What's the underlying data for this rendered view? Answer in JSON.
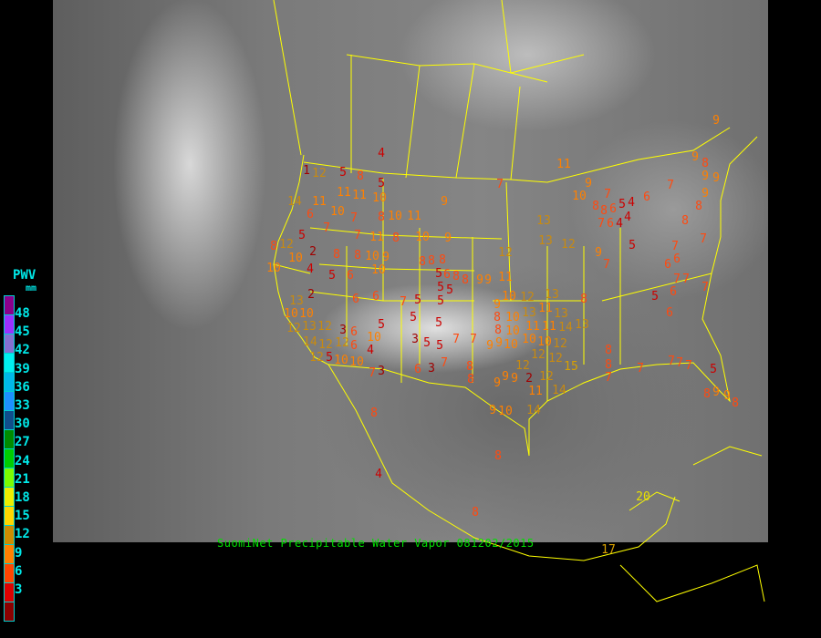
{
  "caption": "SuomiNet Precipitable Water Vapor 081202/2015",
  "legend": {
    "title": "PWV",
    "unit": "mm",
    "ticks": [
      "48",
      "45",
      "42",
      "39",
      "36",
      "33",
      "30",
      "27",
      "24",
      "21",
      "18",
      "15",
      "12",
      "9",
      "6",
      "3"
    ],
    "colors": [
      "#8b008b",
      "#9b30ff",
      "#8470d0",
      "#00f0f0",
      "#00b8e8",
      "#1e90ff",
      "#104e8b",
      "#008b00",
      "#00cd00",
      "#7cfc00",
      "#eeee00",
      "#ffd700",
      "#cd8c00",
      "#ff8000",
      "#ff4500",
      "#dd0000",
      "#8b0000"
    ]
  },
  "stations": [
    4,
    1,
    12,
    5,
    8,
    5,
    14,
    11,
    11,
    11,
    10,
    6,
    10,
    7,
    8,
    10,
    11,
    9,
    7,
    7,
    11,
    8,
    10,
    9,
    5,
    8,
    12,
    10,
    2,
    8,
    8,
    10,
    9,
    10,
    10,
    4,
    5,
    6,
    8,
    8,
    8,
    5,
    6,
    5,
    5,
    8,
    8,
    9,
    2,
    6,
    6,
    13,
    10,
    10,
    13,
    12,
    14,
    12,
    12,
    3,
    12,
    6,
    10,
    6,
    4,
    5,
    7,
    5,
    5,
    5,
    5,
    3,
    5,
    5,
    7,
    7,
    12,
    5,
    10,
    10,
    7,
    3,
    6,
    3,
    7,
    8,
    9,
    7,
    13,
    13,
    12,
    12,
    11,
    9,
    10,
    12,
    13,
    11,
    9,
    8,
    10,
    11,
    8,
    10,
    10,
    10,
    11,
    14,
    9,
    10,
    12,
    12,
    13,
    13,
    13,
    8,
    9,
    7,
    12,
    15,
    12,
    2,
    11,
    14,
    9,
    9,
    8,
    9,
    9,
    10,
    14,
    8,
    8,
    7,
    12,
    9,
    10,
    7,
    8,
    8,
    6,
    5,
    4,
    4,
    4,
    7,
    6,
    5,
    6,
    7,
    9,
    9,
    9,
    8,
    8,
    7,
    7,
    6,
    6,
    7,
    7,
    7,
    6,
    5,
    6,
    7,
    7,
    7,
    7,
    5,
    9,
    8,
    9,
    8,
    9,
    9,
    8,
    11,
    8,
    8,
    8,
    4,
    20,
    17
  ],
  "colors": {
    "map_outline": "#ffff00",
    "caption": "#00e000",
    "legend_text": "#00e8e8"
  }
}
